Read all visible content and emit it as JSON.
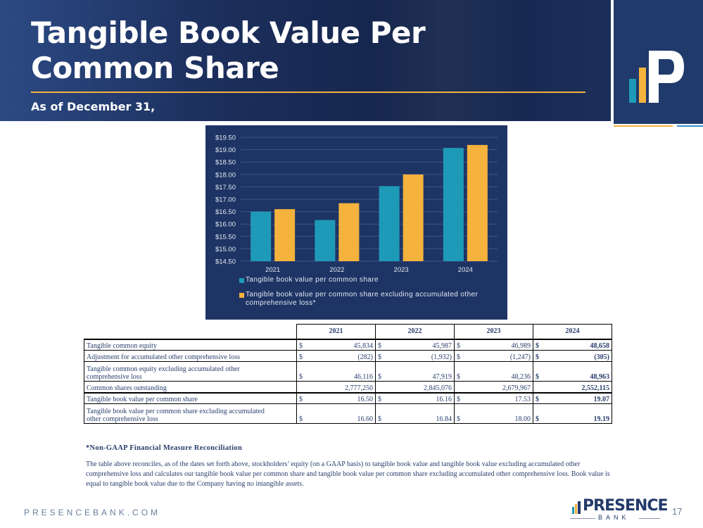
{
  "slide": {
    "title_line1": "Tangible Book Value Per",
    "title_line2": "Common Share",
    "subtitle": "As of December 31,"
  },
  "chart_data": {
    "type": "bar",
    "categories": [
      "2021",
      "2022",
      "2023",
      "2024"
    ],
    "series": [
      {
        "name": "Tangible book value per common share",
        "values": [
          16.5,
          16.16,
          17.53,
          19.07
        ],
        "color": "#1e9ab8"
      },
      {
        "name": "Tangible book value per common share excluding accumulated other comprehensive loss*",
        "values": [
          16.6,
          16.84,
          18.0,
          19.19
        ],
        "color": "#f5b23d"
      }
    ],
    "ylim": [
      14.5,
      19.5
    ],
    "yticks": [
      "$14.50",
      "$15.00",
      "$15.50",
      "$16.00",
      "$16.50",
      "$17.00",
      "$17.50",
      "$18.00",
      "$18.50",
      "$19.00",
      "$19.50"
    ],
    "legend_position": "bottom",
    "grid": true
  },
  "legend": {
    "item1": "Tangible book value per common share",
    "item2_line1": "Tangible book value per common share excluding accumulated other",
    "item2_line2": "comprehensive loss*"
  },
  "table": {
    "years": [
      "2021",
      "2022",
      "2023",
      "2024"
    ],
    "rows": [
      {
        "label1": "Tangible common equity",
        "label2": "",
        "cur": [
          "$",
          "$",
          "$",
          "$"
        ],
        "values": [
          "45,834",
          "45,987",
          "46,989",
          "48,658"
        ]
      },
      {
        "label1": "Adjustment for accumulated other comprehensive loss",
        "label2": "",
        "cur": [
          "$",
          "$",
          "$",
          "$"
        ],
        "values": [
          "(282)",
          "(1,932)",
          "(1,247)",
          "(305)"
        ]
      },
      {
        "label1": "Tangible common equity excluding accumulated other",
        "label2": "comprehensive loss",
        "cur": [
          "$",
          "$",
          "$",
          "$"
        ],
        "values": [
          "46,116",
          "47,919",
          "48,236",
          "48,963"
        ]
      },
      {
        "label1": "Common shares outstanding",
        "label2": "",
        "cur": [
          "",
          "",
          "",
          ""
        ],
        "values": [
          "2,777,250",
          "2,845,076",
          "2,679,967",
          "2,552,115"
        ]
      },
      {
        "label1": "Tangible book value per common share",
        "label2": "",
        "cur": [
          "$",
          "$",
          "$",
          "$"
        ],
        "values": [
          "16.50",
          "16.16",
          "17.53",
          "19.07"
        ]
      },
      {
        "label1": "Tangible book value per common share excluding accumulated",
        "label2": "other comprehensive loss",
        "cur": [
          "$",
          "$",
          "$",
          "$"
        ],
        "values": [
          "16.60",
          "16.84",
          "18.00",
          "19.19"
        ]
      }
    ]
  },
  "note": {
    "title": "*Non-GAAP Financial Measure Reconciliation",
    "body": "The table above reconciles, as of the dates set forth above, stockholders’ equity (on a GAAP basis) to tangible book value and tangible book value excluding accumulated other comprehensive loss and calculates our tangible book value per common share and tangible book value per common share excluding accumulated other comprehensive loss.  Book value is equal to tangible book value due to the Company having no intangible assets."
  },
  "footer": {
    "url": "PRESENCEBANK.COM",
    "brand": "PRESENCE",
    "brand_sub": "BANK",
    "page_number": "17"
  }
}
